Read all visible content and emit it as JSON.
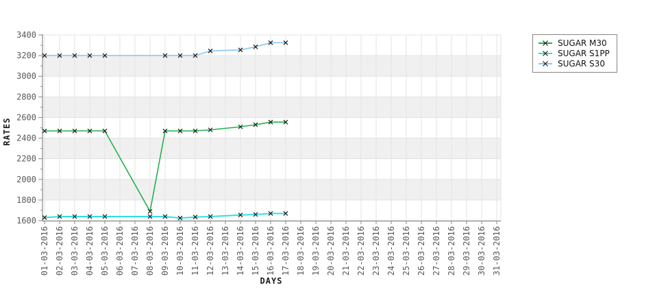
{
  "chart_data": {
    "type": "line",
    "title": "",
    "xlabel": "DAYS",
    "ylabel": "RATES",
    "ylim": [
      1600,
      3400
    ],
    "y_major_step": 200,
    "y_minor_step": 100,
    "grid": true,
    "background_bands": true,
    "marker": "x",
    "legend_position": "outside-top-right",
    "y_tick_labels": [
      "3400",
      "3200",
      "3000",
      "2800",
      "2600",
      "2400",
      "2200",
      "2000",
      "1800",
      "1600"
    ],
    "x_tick_labels": [
      "01-03-2016",
      "02-03-2016",
      "03-03-2016",
      "04-03-2016",
      "05-03-2016",
      "06-03-2016",
      "07-03-2016",
      "08-03-2016",
      "09-03-2016",
      "10-03-2016",
      "11-03-2016",
      "12-03-2016",
      "13-03-2016",
      "14-03-2016",
      "15-03-2016",
      "16-03-2016",
      "17-03-2016",
      "18-03-2016",
      "19-03-2016",
      "20-03-2016",
      "21-03-2016",
      "22-03-2016",
      "23-03-2016",
      "24-03-2016",
      "25-03-2016",
      "26-03-2016",
      "27-03-2016",
      "28-03-2016",
      "29-03-2016",
      "30-03-2016",
      "31-03-2016"
    ],
    "series": [
      {
        "name": "SUGAR M30",
        "color": "#22b14c",
        "points": [
          [
            "01-03-2016",
            2470
          ],
          [
            "02-03-2016",
            2470
          ],
          [
            "03-03-2016",
            2470
          ],
          [
            "04-03-2016",
            2470
          ],
          [
            "05-03-2016",
            2470
          ],
          [
            "08-03-2016",
            1690
          ],
          [
            "09-03-2016",
            2470
          ],
          [
            "10-03-2016",
            2470
          ],
          [
            "11-03-2016",
            2470
          ],
          [
            "12-03-2016",
            2480
          ],
          [
            "14-03-2016",
            2510
          ],
          [
            "15-03-2016",
            2530
          ],
          [
            "16-03-2016",
            2555
          ],
          [
            "17-03-2016",
            2555
          ]
        ]
      },
      {
        "name": "SUGAR S1PP",
        "color": "#2ee0e0",
        "points": [
          [
            "01-03-2016",
            1630
          ],
          [
            "02-03-2016",
            1640
          ],
          [
            "03-03-2016",
            1640
          ],
          [
            "04-03-2016",
            1640
          ],
          [
            "05-03-2016",
            1640
          ],
          [
            "08-03-2016",
            1640
          ],
          [
            "09-03-2016",
            1640
          ],
          [
            "10-03-2016",
            1625
          ],
          [
            "11-03-2016",
            1635
          ],
          [
            "12-03-2016",
            1640
          ],
          [
            "14-03-2016",
            1655
          ],
          [
            "15-03-2016",
            1660
          ],
          [
            "16-03-2016",
            1670
          ],
          [
            "17-03-2016",
            1670
          ]
        ]
      },
      {
        "name": "SUGAR S30",
        "color": "#8cc7f0",
        "points": [
          [
            "01-03-2016",
            3200
          ],
          [
            "02-03-2016",
            3200
          ],
          [
            "03-03-2016",
            3200
          ],
          [
            "04-03-2016",
            3200
          ],
          [
            "05-03-2016",
            3200
          ],
          [
            "09-03-2016",
            3200
          ],
          [
            "10-03-2016",
            3200
          ],
          [
            "11-03-2016",
            3200
          ],
          [
            "12-03-2016",
            3245
          ],
          [
            "14-03-2016",
            3255
          ],
          [
            "15-03-2016",
            3285
          ],
          [
            "16-03-2016",
            3325
          ],
          [
            "17-03-2016",
            3325
          ]
        ]
      }
    ]
  },
  "legend": {
    "items": [
      {
        "label": "SUGAR M30",
        "color": "#22b14c"
      },
      {
        "label": "SUGAR S1PP",
        "color": "#2ee0e0"
      },
      {
        "label": "SUGAR S30",
        "color": "#8cc7f0"
      }
    ]
  },
  "style_colors": {
    "band_gray": "#f0f0f0",
    "gridline": "#e3e3e3",
    "axis": "#8a8a8a",
    "tick_text": "#595959",
    "marker": "#1a1a1a"
  }
}
